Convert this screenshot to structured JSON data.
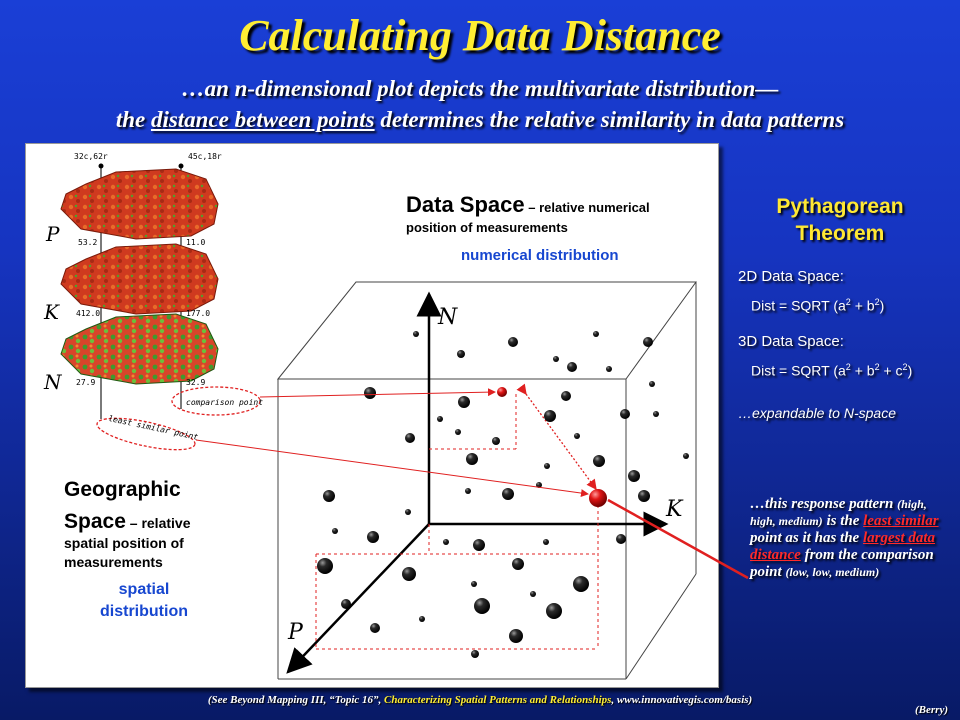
{
  "title": "Calculating Data Distance",
  "subtitle": {
    "line1": "…an n-dimensional plot depicts the multivariate distribution—",
    "line2_pre": "the ",
    "line2_underlined": "distance between points",
    "line2_post": " determines the relative similarity in data patterns"
  },
  "diagram": {
    "data_space_heading": "Data Space",
    "data_space_desc1": " – relative numerical",
    "data_space_desc2": "position of measurements",
    "numerical_distribution": "numerical distribution",
    "geo_heading1": "Geographic",
    "geo_heading2": "Space",
    "geo_desc1": " – relative",
    "geo_desc2": "spatial position of",
    "geo_desc3": "measurements",
    "spatial_distribution1": "spatial",
    "spatial_distribution2": "distribution",
    "map_labels": {
      "p_label": "P",
      "k_label": "K",
      "n_label": "N",
      "p_top_left": "32c,62r",
      "p_top_right": "45c,18r",
      "k_top_left": "53.2",
      "k_top_right": "11.0",
      "n_top_left": "412.0",
      "n_top_right": "177.0",
      "n_bottom_left": "27.9",
      "n_bottom_right": "32.9",
      "comparison_point": "comparison point",
      "least_similar_point": "least similar point"
    },
    "axis_labels": {
      "n": "N",
      "k": "K",
      "p": "P"
    },
    "colors": {
      "arrow": "#e02020",
      "map_red": "#d23a1e",
      "map_green": "#2f9a2a",
      "blue_text": "#1747d0"
    }
  },
  "right_panel": {
    "heading_line1": "Pythagorean",
    "heading_line2": "Theorem",
    "d2_label": "2D Data Space:",
    "d2_formula_pre": "Dist = SQRT (a",
    "d2_formula_mid": " + b",
    "d2_formula_post": ")",
    "d3_label": "3D Data Space:",
    "d3_formula_pre": "Dist = SQRT (a",
    "d3_formula_b": " + b",
    "d3_formula_c": " + c",
    "d3_formula_post": ")",
    "exp": "2",
    "expandable": "…expandable to N-space"
  },
  "note": {
    "t1": "…this response pattern ",
    "t2": "(high, high, medium)",
    "t3": " is the ",
    "t4": "least similar",
    "t5": " point as it has the ",
    "t6": "largest data distance",
    "t7": " from the comparison point ",
    "t8": "(low, low, medium)"
  },
  "footer": {
    "pre": "(See Beyond Mapping III, “Topic 16”, ",
    "yellow": "Characterizing Spatial Patterns and Relationships",
    "post": ", www.innovativegis.com/basis)",
    "author": "(Berry)"
  }
}
